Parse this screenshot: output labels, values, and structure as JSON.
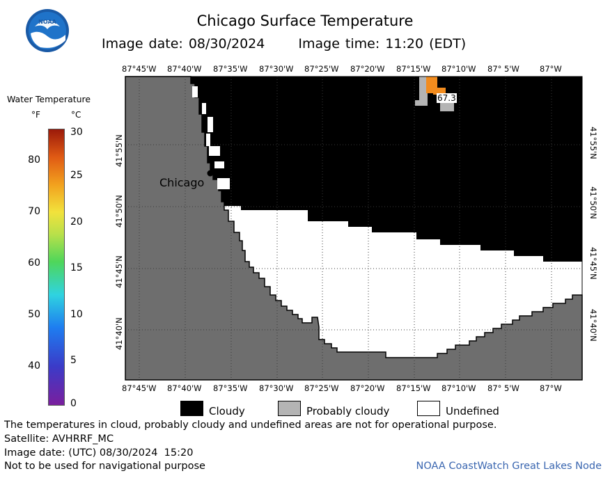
{
  "header": {
    "title": "Chicago Surface Temperature",
    "image_date": "Image date: 08/30/2024",
    "image_time": "Image time: 11:20 (EDT)"
  },
  "colorbar": {
    "title": "Water Temperature",
    "unit_f": "°F",
    "unit_c": "°C",
    "ticks_f": [
      "80",
      "70",
      "60",
      "50",
      "40"
    ],
    "ticks_c": [
      "30",
      "25",
      "20",
      "15",
      "10",
      "5",
      "0"
    ]
  },
  "map": {
    "lon_labels": [
      "87°45'W",
      "87°40'W",
      "87°35'W",
      "87°30'W",
      "87°25'W",
      "87°20'W",
      "87°15'W",
      "87°10'W",
      "87° 5'W",
      "87°W"
    ],
    "lat_labels": [
      "41°55'N",
      "41°50'N",
      "41°45'N",
      "41°40'N"
    ],
    "city_label": "Chicago",
    "sample_value": "67.3",
    "colors": {
      "land": "#6e6e6e",
      "cloudy": "#000000",
      "probably_cloudy": "#b4b4b4",
      "undefined": "#ffffff",
      "warm_water": "#f28c1e"
    }
  },
  "legend": {
    "cloudy": "Cloudy",
    "probably_cloudy": "Probably cloudy",
    "undefined": "Undefined"
  },
  "footer": {
    "disclaimer": "The temperatures in cloud, probably cloudy and undefined areas are not for operational purpose.",
    "satellite": "Satellite: AVHRRF_MC",
    "utc_date": "Image date: (UTC) 08/30/2024  15:20",
    "nav_warning": "Not to be used for navigational purpose",
    "credit": "NOAA CoastWatch Great Lakes Node"
  }
}
